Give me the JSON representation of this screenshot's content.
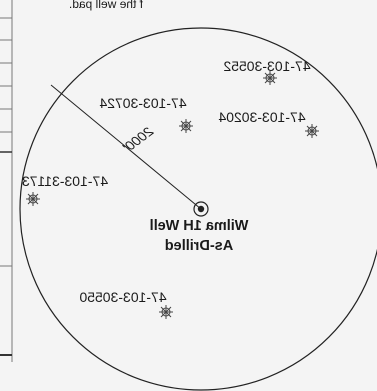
{
  "header_fragment": "f the well pad.",
  "radius_label": "2000'",
  "center_well": {
    "name": "Wilma 1H Well",
    "status": "As-Drilled"
  },
  "nearby_wells": [
    {
      "id": "47-103-30552"
    },
    {
      "id": "47-103-30724"
    },
    {
      "id": "47-103-30204"
    },
    {
      "id": "47-103-31173"
    },
    {
      "id": "47-103-30550"
    }
  ],
  "colors": {
    "background": "#f4f4f4",
    "line": "#222222",
    "well_symbol": "#444444"
  },
  "notes": {
    "image_is_mirrored": true
  }
}
